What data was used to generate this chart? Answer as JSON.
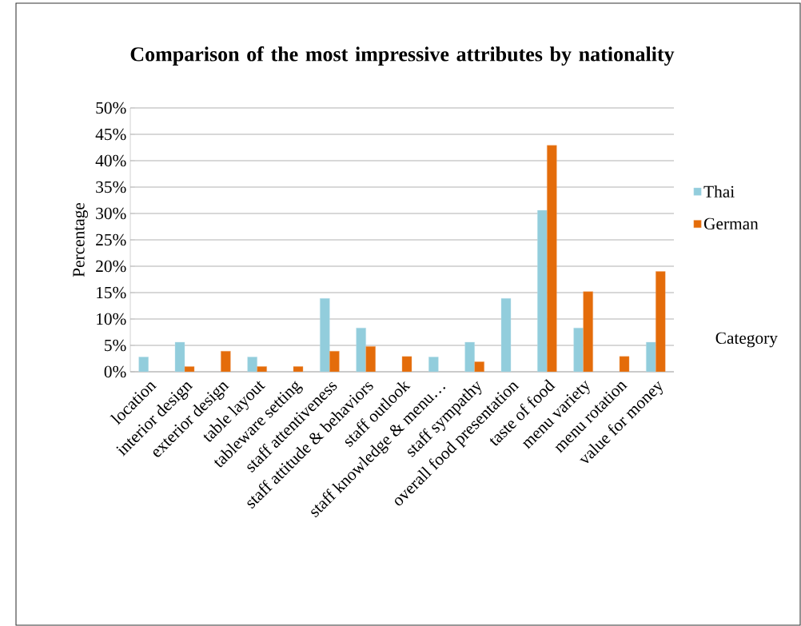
{
  "chart_data": {
    "type": "bar",
    "title": "Comparison of the most impressive attributes by nationality",
    "ylabel": "Percentage",
    "categories": [
      "location",
      "interior design",
      "exterior design",
      "table layout",
      "tableware setting",
      "staff attentiveness",
      "staff attitude & behaviors",
      "staff outlook",
      "staff knowledge & menu…",
      "staff sympathy",
      "overall food presentation",
      "taste of food",
      "menu variety",
      "menu rotation",
      "value for money"
    ],
    "series": [
      {
        "name": "Thai",
        "color": "#92cddc",
        "values": [
          2.8,
          5.6,
          null,
          2.8,
          null,
          13.9,
          8.3,
          null,
          2.8,
          5.6,
          13.9,
          30.6,
          8.3,
          null,
          5.6
        ]
      },
      {
        "name": "German",
        "color": "#e46c0a",
        "values": [
          null,
          1.0,
          3.9,
          1.0,
          1.0,
          3.9,
          4.8,
          2.9,
          null,
          1.9,
          null,
          42.9,
          15.2,
          2.9,
          19.0
        ]
      }
    ],
    "ylim": [
      0,
      50
    ],
    "yticks": [
      {
        "value": 0,
        "label": "0%"
      },
      {
        "value": 5,
        "label": "5%"
      },
      {
        "value": 10,
        "label": "10%"
      },
      {
        "value": 15,
        "label": "15%"
      },
      {
        "value": 20,
        "label": "20%"
      },
      {
        "value": 25,
        "label": "25%"
      },
      {
        "value": 30,
        "label": "30%"
      },
      {
        "value": 35,
        "label": "35%"
      },
      {
        "value": 40,
        "label": "40%"
      },
      {
        "value": 45,
        "label": "45%"
      },
      {
        "value": 50,
        "label": "50%"
      }
    ],
    "grid": "y",
    "legend": "right",
    "annotations": [
      "Category"
    ]
  }
}
